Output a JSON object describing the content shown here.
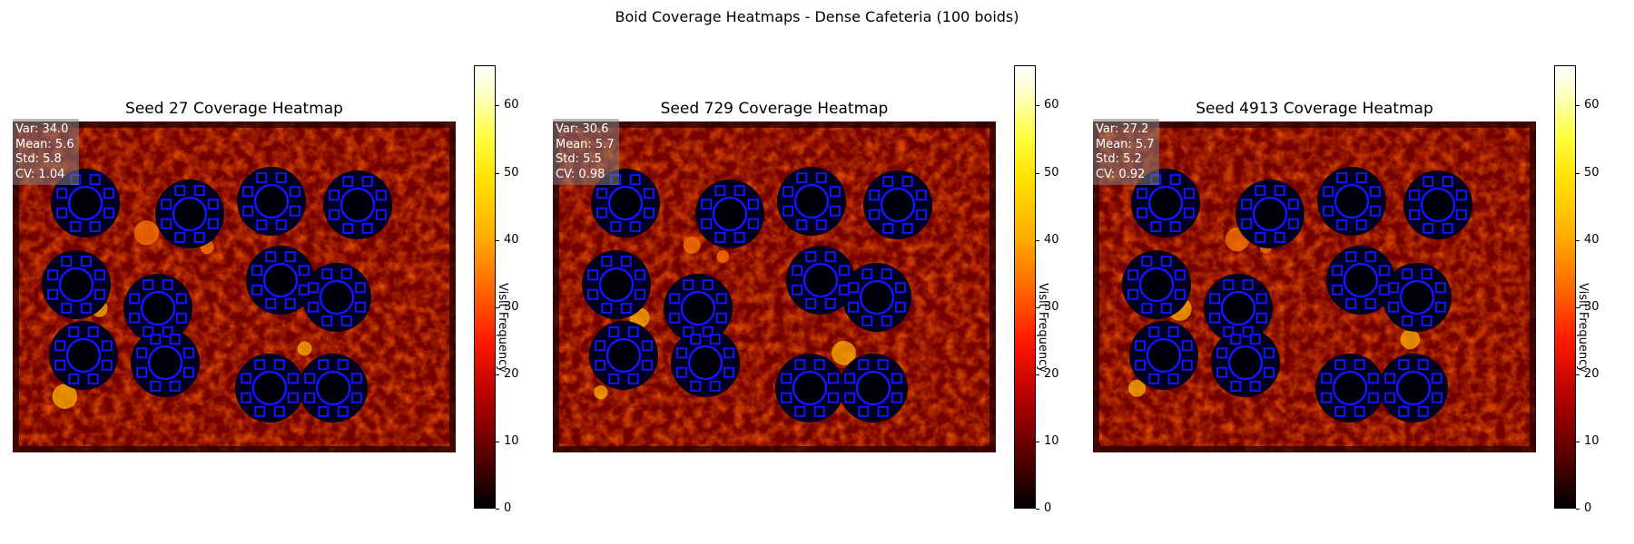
{
  "suptitle": "Boid Coverage Heatmaps - Dense Cafeteria  (100 boids)",
  "colors": {
    "colormap": "hot",
    "furniture": "#1414ff",
    "blocked": "#00001e"
  },
  "chart_data": [
    {
      "type": "heatmap",
      "title": "Seed 27 Coverage Heatmap",
      "stats": [
        "Var: 34.0",
        "Mean: 5.6",
        "Std: 5.8",
        "CV: 1.04"
      ],
      "colorbar": {
        "label": "Visit Frequency",
        "range": [
          0,
          66
        ],
        "ticks": [
          "0",
          "10",
          "20",
          "30",
          "40",
          "50",
          "60"
        ]
      }
    },
    {
      "type": "heatmap",
      "title": "Seed 729 Coverage Heatmap",
      "stats": [
        "Var: 30.6",
        "Mean: 5.7",
        "Std: 5.5",
        "CV: 0.98"
      ],
      "colorbar": {
        "label": "Visit Frequency",
        "range": [
          0,
          66
        ],
        "ticks": [
          "0",
          "10",
          "20",
          "30",
          "40",
          "50",
          "60"
        ]
      }
    },
    {
      "type": "heatmap",
      "title": "Seed 4913 Coverage Heatmap",
      "stats": [
        "Var: 27.2",
        "Mean: 5.7",
        "Std: 5.2",
        "CV: 0.92"
      ],
      "colorbar": {
        "label": "Visit Frequency",
        "range": [
          0,
          66
        ],
        "ticks": [
          "0",
          "10",
          "20",
          "30",
          "40",
          "50",
          "60"
        ]
      }
    }
  ]
}
